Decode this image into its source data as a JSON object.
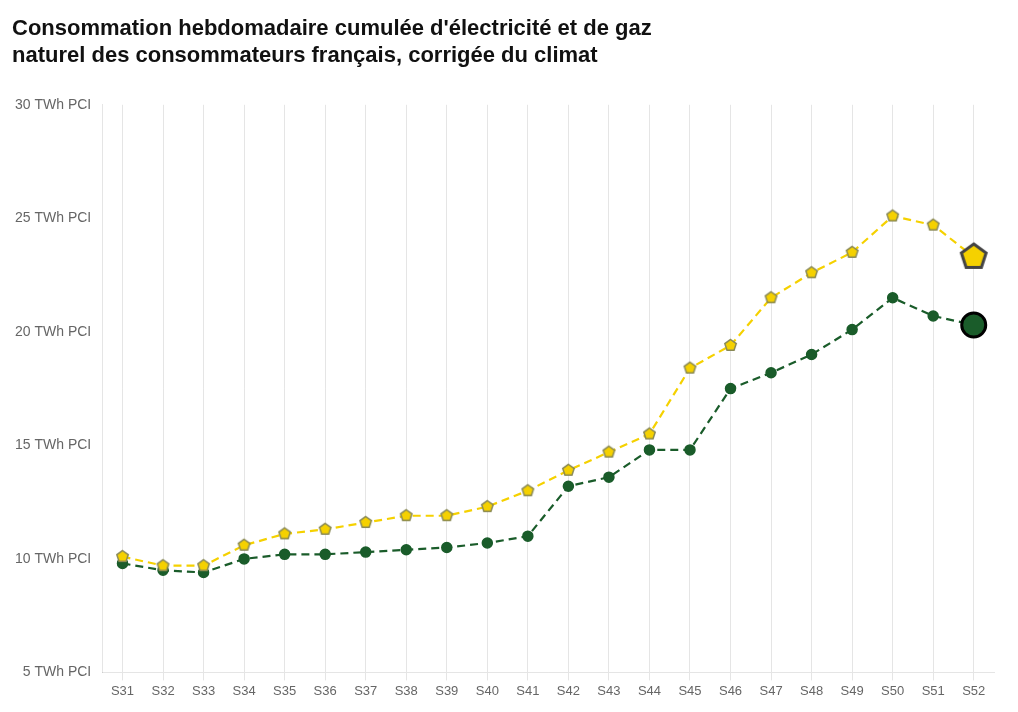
{
  "chart_data": {
    "type": "line",
    "title": [
      "Consommation hebdomadaire cumulée d'électricité et de gaz",
      "naturel des consommateurs français, corrigée du climat"
    ],
    "categories": [
      "S31",
      "S32",
      "S33",
      "S34",
      "S35",
      "S36",
      "S37",
      "S38",
      "S39",
      "S40",
      "S41",
      "S42",
      "S43",
      "S44",
      "S45",
      "S46",
      "S47",
      "S48",
      "S49",
      "S50",
      "S51",
      "S52"
    ],
    "series": [
      {
        "color": "#1a5c2a",
        "marker": "circle",
        "line_style": "dashed",
        "values": [
          9.8,
          9.5,
          9.4,
          10.0,
          10.2,
          10.2,
          10.3,
          10.4,
          10.5,
          10.7,
          11.0,
          13.2,
          13.6,
          14.8,
          14.8,
          17.5,
          18.2,
          19.0,
          20.1,
          21.5,
          20.7,
          20.3
        ]
      },
      {
        "color": "#f5d100",
        "marker": "pentagon",
        "line_style": "dashed",
        "values": [
          10.1,
          9.7,
          9.7,
          10.6,
          11.1,
          11.3,
          11.6,
          11.9,
          11.9,
          12.3,
          13.0,
          13.9,
          14.7,
          15.5,
          18.4,
          19.4,
          21.5,
          22.6,
          23.5,
          25.1,
          24.7,
          23.3
        ]
      }
    ],
    "ylim": [
      5,
      30
    ],
    "yticks": [
      {
        "value": 5,
        "label": "5 TWh PCI"
      },
      {
        "value": 10,
        "label": "10 TWh PCI"
      },
      {
        "value": 15,
        "label": "15 TWh PCI"
      },
      {
        "value": 20,
        "label": "20 TWh PCI"
      },
      {
        "value": 25,
        "label": "25 TWh PCI"
      },
      {
        "value": 30,
        "label": "30 TWh PCI"
      }
    ],
    "grid": "x"
  }
}
